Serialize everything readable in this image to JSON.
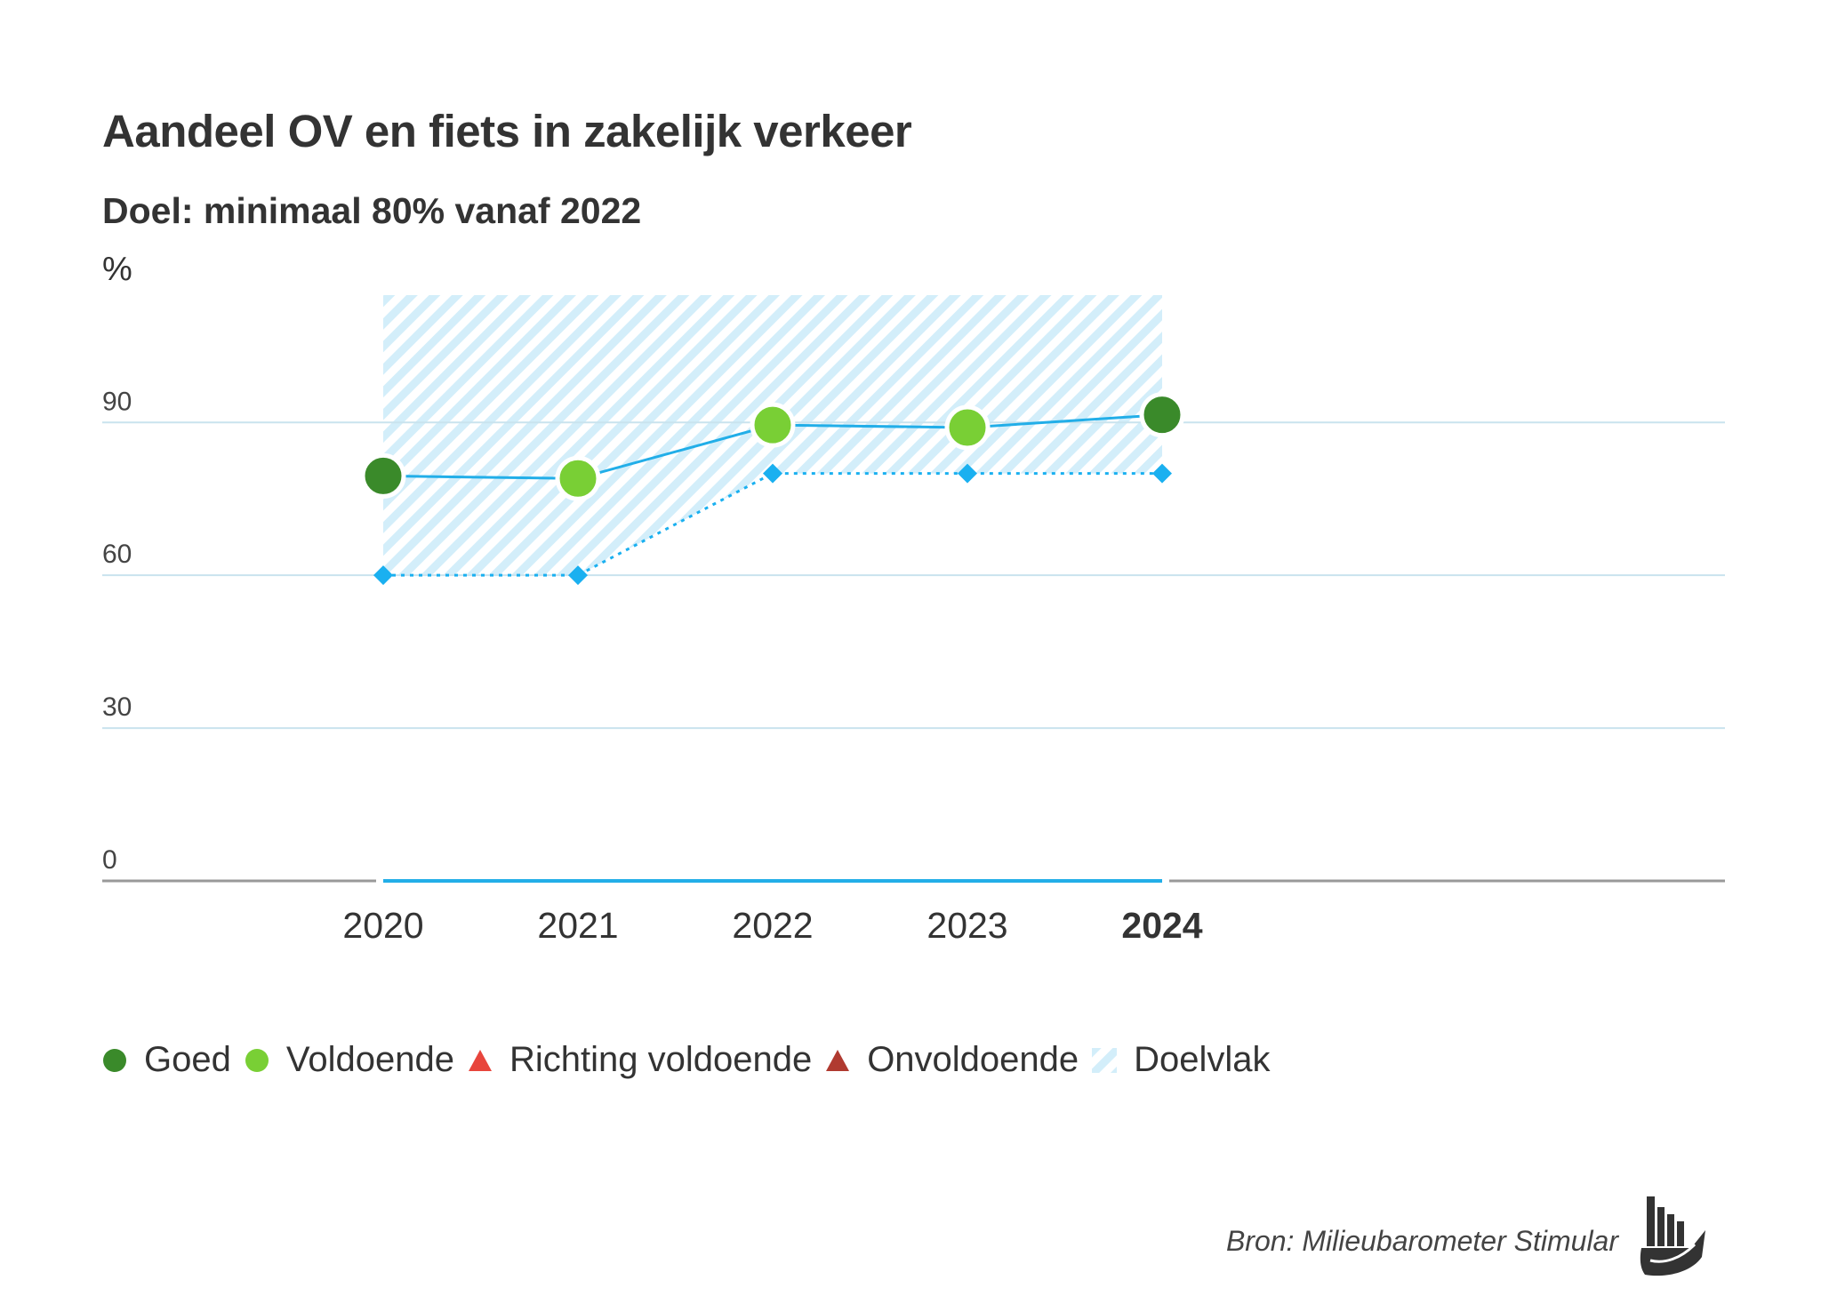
{
  "title": "Aandeel OV en fiets in zakelijk verkeer",
  "subtitle": "Doel: minimaal 80% vanaf 2022",
  "source": "Bron: Milieubarometer Stimular",
  "legend": [
    {
      "label": "Goed",
      "marker": "circle",
      "color": "#3a8a2a"
    },
    {
      "label": "Voldoende",
      "marker": "circle",
      "color": "#79cf35"
    },
    {
      "label": "Richting voldoende",
      "marker": "triangle",
      "color": "#e8453c"
    },
    {
      "label": "Onvoldoende",
      "marker": "triangle",
      "color": "#b03a30"
    },
    {
      "label": "Doelvlak",
      "marker": "hatch",
      "color": "#bfe6f7"
    }
  ],
  "chart_data": {
    "type": "line",
    "title": "Aandeel OV en fiets in zakelijk verkeer",
    "subtitle": "Doel: minimaal 80% vanaf 2022",
    "ylabel": "%",
    "ylim": [
      0,
      115
    ],
    "yticks": [
      0,
      30,
      60,
      90
    ],
    "x": [
      "2020",
      "2021",
      "2022",
      "2023",
      "2024"
    ],
    "highlight_x": "2024",
    "grid": true,
    "legend_position": "bottom-left",
    "series": [
      {
        "name": "Aandeel",
        "values": [
          79.5,
          79,
          89.5,
          89,
          91.5
        ],
        "status": [
          "Goed",
          "Voldoende",
          "Voldoende",
          "Voldoende",
          "Goed"
        ],
        "line_color": "#22aee8"
      },
      {
        "name": "Doel",
        "values": [
          60,
          60,
          80,
          80,
          80
        ],
        "style": "dotted",
        "marker": "diamond",
        "color": "#1ab0f0"
      }
    ],
    "target_area": {
      "name": "Doelvlak",
      "from": "Doel",
      "to": 115,
      "x": [
        "2020",
        "2024"
      ]
    },
    "colors": {
      "Goed": "#3a8a2a",
      "Voldoende": "#79cf35",
      "grid": "#c9e3ee",
      "axis": "#999999",
      "baseline": "#22aee8"
    }
  }
}
